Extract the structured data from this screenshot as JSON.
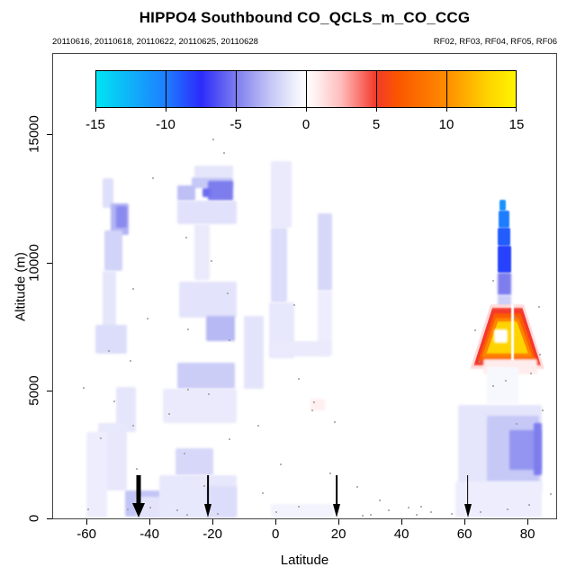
{
  "title": "HIPPO4 Southbound CO_QCLS_m_CO_CCG",
  "subtitle_left": "20110616, 20110618, 20110622, 20110625, 20110628",
  "subtitle_right": "RF02, RF03, RF04, RF05, RF06",
  "colors": {
    "background": "#ffffff",
    "box_border": "#444444",
    "dot": "#999999",
    "arrow": "#000000"
  },
  "axes": {
    "x": {
      "label": "Latitude",
      "ticks": [
        -60,
        -40,
        -20,
        0,
        20,
        40,
        60,
        80
      ],
      "range": [
        -70.6,
        89.1
      ]
    },
    "y": {
      "label": "Altitude (m)",
      "ticks": [
        0,
        5000,
        10000,
        15000
      ],
      "range": [
        0,
        18140
      ]
    }
  },
  "colorbar": {
    "min": -15,
    "max": 15,
    "ticks": [
      -15,
      -10,
      -5,
      0,
      5,
      10,
      15
    ],
    "stops": [
      [
        -15,
        "#00E4F2"
      ],
      [
        -10,
        "#1E7DFF"
      ],
      [
        -7.5,
        "#2B2BFB"
      ],
      [
        -5,
        "#7D7DEE"
      ],
      [
        -2.5,
        "#C6C8F6"
      ],
      [
        -0.8,
        "#EFEFFD"
      ],
      [
        0,
        "#FFFFFF"
      ],
      [
        0.8,
        "#FFEDED"
      ],
      [
        2.5,
        "#FFBDBD"
      ],
      [
        5,
        "#F4392B"
      ],
      [
        6.5,
        "#FA5500"
      ],
      [
        10,
        "#FF8C00"
      ],
      [
        13,
        "#FFD300"
      ],
      [
        15,
        "#FFF400"
      ]
    ]
  },
  "arrows": [
    {
      "lat": -43.5,
      "bold": true
    },
    {
      "lat": -21.5,
      "bold": false
    },
    {
      "lat": 19.5,
      "bold": false
    },
    {
      "lat": 61,
      "bold": false
    }
  ],
  "chart_data": {
    "type": "heatmap",
    "x_name": "Latitude",
    "y_name": "Altitude (m)",
    "value_name": "CO_QCLS minus CO_CCG (ppb), scale -15 to 15",
    "patches": [
      [
        -55,
        -51.5,
        13290,
        12130,
        -1.5
      ],
      [
        -52.3,
        -46.6,
        12310,
        11080,
        -3.2
      ],
      [
        -50.6,
        -47.1,
        12200,
        11360,
        -4.6
      ],
      [
        -54.3,
        -48.6,
        11250,
        9680,
        -2
      ],
      [
        -54.9,
        -50.6,
        9680,
        7150,
        -1.2
      ],
      [
        -57.1,
        -47.1,
        7570,
        6450,
        -1.6
      ],
      [
        -50.6,
        -44.3,
        5120,
        3370,
        -1.2
      ],
      [
        -56.3,
        -47.1,
        3720,
        1090,
        -1.1
      ],
      [
        -60,
        -53.4,
        3370,
        40,
        -0.9
      ],
      [
        -47.7,
        -36.3,
        1090,
        70,
        -2.6
      ],
      [
        -44.3,
        -20,
        840,
        40,
        -1.3
      ],
      [
        -25.7,
        -13.4,
        13780,
        13320,
        -1.2
      ],
      [
        -26.6,
        -13.4,
        13320,
        12900,
        -2.5
      ],
      [
        -21.4,
        -13.4,
        13180,
        12410,
        -5
      ],
      [
        -23.1,
        -20.6,
        12900,
        12550,
        -5.5
      ],
      [
        -31.1,
        -25.4,
        13010,
        12410,
        -2.8
      ],
      [
        -31.1,
        -12.3,
        12410,
        11500,
        -1.4
      ],
      [
        -25.7,
        -20.9,
        11500,
        9330,
        -1
      ],
      [
        -30.6,
        -12.3,
        9260,
        7850,
        -1.3
      ],
      [
        -22,
        -12.9,
        7920,
        6940,
        -3
      ],
      [
        -10,
        -3.7,
        7920,
        5050,
        -1.3
      ],
      [
        -31.1,
        -12.9,
        6070,
        5050,
        -2.3
      ],
      [
        -35.7,
        -12.3,
        5050,
        3720,
        -1
      ],
      [
        -31.7,
        -19.7,
        2740,
        1680,
        -1.8
      ],
      [
        -36.9,
        -12.3,
        1680,
        40,
        -1.1
      ],
      [
        -22,
        -12.3,
        1260,
        40,
        -1.6
      ],
      [
        -1.4,
        5.1,
        13950,
        11360,
        -1
      ],
      [
        -1.4,
        3.7,
        11360,
        8450,
        -1.6
      ],
      [
        -2,
        6,
        8450,
        6240,
        -1.1
      ],
      [
        13.4,
        18,
        11920,
        8910,
        -1.8
      ],
      [
        13.4,
        18,
        8910,
        6350,
        -0.9
      ],
      [
        -1.4,
        17.4,
        6940,
        6310,
        -1
      ],
      [
        11.1,
        15.7,
        4660,
        4210,
        0.7
      ],
      [
        -1.4,
        18.6,
        560,
        40,
        -0.6
      ],
      [
        71.1,
        73.1,
        12450,
        12030,
        -11
      ],
      [
        70.9,
        74.3,
        12030,
        11360,
        -10
      ],
      [
        70.6,
        74.6,
        11360,
        10660,
        -9
      ],
      [
        70.6,
        74.9,
        10660,
        9610,
        -8.2
      ],
      [
        70.6,
        74.9,
        9610,
        8730,
        -5
      ],
      [
        70.6,
        74.9,
        8730,
        8240,
        -2.2
      ],
      [
        61.7,
        85.4,
        8380,
        5820,
        1.5,
        "trap"
      ],
      [
        62.9,
        84.3,
        8240,
        5960,
        5,
        "trap"
      ],
      [
        64.3,
        82.9,
        8030,
        6140,
        7,
        "trap"
      ],
      [
        65.4,
        81.7,
        7850,
        6280,
        9.5,
        "trap"
      ],
      [
        66.9,
        80.3,
        7710,
        6420,
        13,
        "trap"
      ],
      [
        69.4,
        73.7,
        7400,
        6840,
        0
      ],
      [
        74.9,
        75.7,
        8380,
        5190,
        0,
        "#ffffff"
      ],
      [
        66,
        83.1,
        6240,
        5610,
        0.8
      ],
      [
        67.1,
        77.1,
        5890,
        4490,
        -0.4
      ],
      [
        58,
        84.6,
        4420,
        980,
        -1.2
      ],
      [
        67.1,
        83.7,
        4000,
        1440,
        -2.5
      ],
      [
        74.3,
        84.3,
        3440,
        1890,
        -4.2
      ],
      [
        82,
        84.6,
        3720,
        1680,
        -5
      ],
      [
        57.1,
        84.6,
        1440,
        40,
        -0.9
      ]
    ],
    "sample_dots": [
      [
        -20,
        14830
      ],
      [
        -16.6,
        14300
      ],
      [
        -39.1,
        13320
      ],
      [
        -28.6,
        11010
      ],
      [
        -20.6,
        10100
      ],
      [
        -45.4,
        9010
      ],
      [
        -15.4,
        8840
      ],
      [
        5.7,
        8380
      ],
      [
        -40.9,
        7850
      ],
      [
        -28,
        7430
      ],
      [
        -14.9,
        6980
      ],
      [
        -53.1,
        6560
      ],
      [
        -46.3,
        6170
      ],
      [
        12,
        4560
      ],
      [
        7.1,
        5500
      ],
      [
        -61.1,
        5150
      ],
      [
        -51.4,
        4590
      ],
      [
        -28,
        5050
      ],
      [
        -21.4,
        4870
      ],
      [
        -34,
        4100
      ],
      [
        11.4,
        4240
      ],
      [
        18.6,
        3790
      ],
      [
        -45.4,
        3650
      ],
      [
        -5.7,
        3650
      ],
      [
        -55.7,
        3160
      ],
      [
        -14.9,
        3120
      ],
      [
        -29.1,
        2560
      ],
      [
        1.4,
        2140
      ],
      [
        17.1,
        1790
      ],
      [
        -44.3,
        1960
      ],
      [
        -22.9,
        1300
      ],
      [
        -4.3,
        1020
      ],
      [
        25.7,
        1260
      ],
      [
        32.9,
        740
      ],
      [
        7.1,
        490
      ],
      [
        0,
        280
      ],
      [
        -31.4,
        350
      ],
      [
        -40,
        460
      ],
      [
        -47.1,
        390
      ],
      [
        35.7,
        350
      ],
      [
        42,
        460
      ],
      [
        46,
        490
      ],
      [
        49.1,
        280
      ],
      [
        55.7,
        210
      ],
      [
        64.9,
        280
      ],
      [
        73.4,
        390
      ],
      [
        80.3,
        560
      ],
      [
        87.1,
        980
      ],
      [
        76.3,
        3720
      ],
      [
        84.6,
        4240
      ],
      [
        80.9,
        5680
      ],
      [
        72.9,
        5430
      ],
      [
        68.9,
        5190
      ],
      [
        83.7,
        6450
      ],
      [
        64.6,
        6140
      ],
      [
        75.7,
        7920
      ],
      [
        68.9,
        9330
      ],
      [
        83.4,
        8310
      ],
      [
        63.1,
        7400
      ],
      [
        -59.7,
        390
      ],
      [
        30,
        180
      ],
      [
        -28.3,
        180
      ],
      [
        -18.6,
        210
      ],
      [
        27.4,
        140
      ],
      [
        44.6,
        180
      ]
    ]
  }
}
